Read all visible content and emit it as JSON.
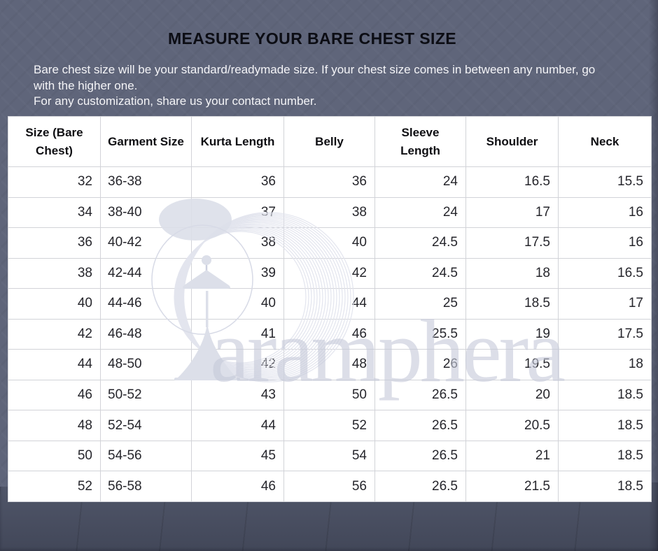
{
  "header": {
    "title": "MEASURE YOUR BARE CHEST SIZE",
    "intro": [
      "Bare chest size will be your standard/readymade size. If your chest size comes in between any number, go with the higher one.",
      "For any customization, share us your contact number."
    ]
  },
  "watermark": {
    "brand": "aramphera"
  },
  "colors": {
    "wall": "#5f657a",
    "floor": "#4b5165",
    "grid": "#d2d3d8",
    "watermark": "#c7cbda",
    "title_text": "#0c0d14",
    "intro_text": "#f4f4f7",
    "cell_text": "#26262c"
  },
  "chart_data": {
    "type": "table",
    "title": "MEASURE YOUR BARE CHEST SIZE",
    "columns": [
      "Size (Bare Chest)",
      "Garment Size",
      "Kurta Length",
      "Belly",
      "Sleeve Length",
      "Shoulder",
      "Neck"
    ],
    "rows": [
      [
        "32",
        "36-38",
        "36",
        "36",
        "24",
        "16.5",
        "15.5"
      ],
      [
        "34",
        "38-40",
        "37",
        "38",
        "24",
        "17",
        "16"
      ],
      [
        "36",
        "40-42",
        "38",
        "40",
        "24.5",
        "17.5",
        "16"
      ],
      [
        "38",
        "42-44",
        "39",
        "42",
        "24.5",
        "18",
        "16.5"
      ],
      [
        "40",
        "44-46",
        "40",
        "44",
        "25",
        "18.5",
        "17"
      ],
      [
        "42",
        "46-48",
        "41",
        "46",
        "25.5",
        "19",
        "17.5"
      ],
      [
        "44",
        "48-50",
        "42",
        "48",
        "26",
        "19.5",
        "18"
      ],
      [
        "46",
        "50-52",
        "43",
        "50",
        "26.5",
        "20",
        "18.5"
      ],
      [
        "48",
        "52-54",
        "44",
        "52",
        "26.5",
        "20.5",
        "18.5"
      ],
      [
        "50",
        "54-56",
        "45",
        "54",
        "26.5",
        "21",
        "18.5"
      ],
      [
        "52",
        "56-58",
        "46",
        "56",
        "26.5",
        "21.5",
        "18.5"
      ]
    ]
  }
}
